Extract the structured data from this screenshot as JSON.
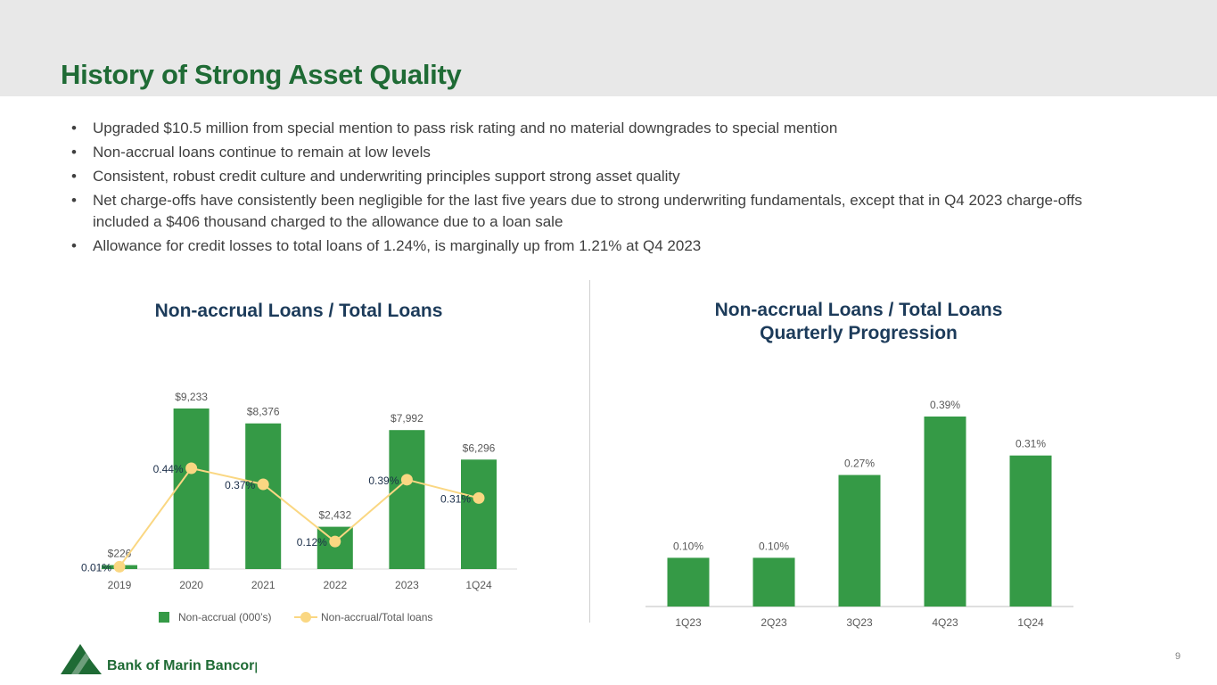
{
  "header": {
    "title": "History of Strong Asset Quality"
  },
  "bullets": [
    "Upgraded $10.5 million from special mention to pass risk rating and no material downgrades to special mention",
    "Non-accrual loans continue to remain at low levels",
    "Consistent, robust credit culture and underwriting principles support strong asset quality",
    "Net charge-offs have consistently been negligible for the last five years due to strong underwriting fundamentals, except that in Q4 2023 charge-offs included a $406 thousand charged to the allowance due to a loan sale",
    "Allowance for credit losses to total loans of 1.24%, is marginally up from 1.21% at Q4 2023"
  ],
  "chart_data": [
    {
      "type": "bar",
      "title": "Non-accrual Loans / Total Loans",
      "categories": [
        "2019",
        "2020",
        "2021",
        "2022",
        "2023",
        "1Q24"
      ],
      "series": [
        {
          "name": "Non-accrual (000’s)",
          "type": "bar",
          "values": [
            226,
            9233,
            8376,
            2432,
            7992,
            6296
          ],
          "labels": [
            "$226",
            "$9,233",
            "$8,376",
            "$2,432",
            "$7,992",
            "$6,296"
          ],
          "color": "#359a46"
        },
        {
          "name": "Non-accrual/Total loans",
          "type": "line",
          "values": [
            0.01,
            0.44,
            0.37,
            0.12,
            0.39,
            0.31
          ],
          "labels": [
            "0.01%",
            "0.44%",
            "0.37%",
            "0.12%",
            "0.39%",
            "0.31%"
          ],
          "color": "#fad782"
        }
      ],
      "bar_ylim": [
        0,
        9233
      ],
      "line_ylim": [
        0,
        0.44
      ],
      "legend_position": "bottom",
      "grid": false
    },
    {
      "type": "bar",
      "title": "Non-accrual Loans / Total Loans Quarterly Progression",
      "title_lines": [
        "Non-accrual Loans / Total Loans",
        "Quarterly Progression"
      ],
      "categories": [
        "1Q23",
        "2Q23",
        "3Q23",
        "4Q23",
        "1Q24"
      ],
      "values": [
        0.1,
        0.1,
        0.27,
        0.39,
        0.31
      ],
      "labels": [
        "0.10%",
        "0.10%",
        "0.27%",
        "0.39%",
        "0.31%"
      ],
      "ylim": [
        0,
        0.39
      ],
      "color": "#359a46",
      "grid": false
    }
  ],
  "footer": {
    "logo_text": "Bank of Marin Bancorp",
    "page_number": "9"
  }
}
